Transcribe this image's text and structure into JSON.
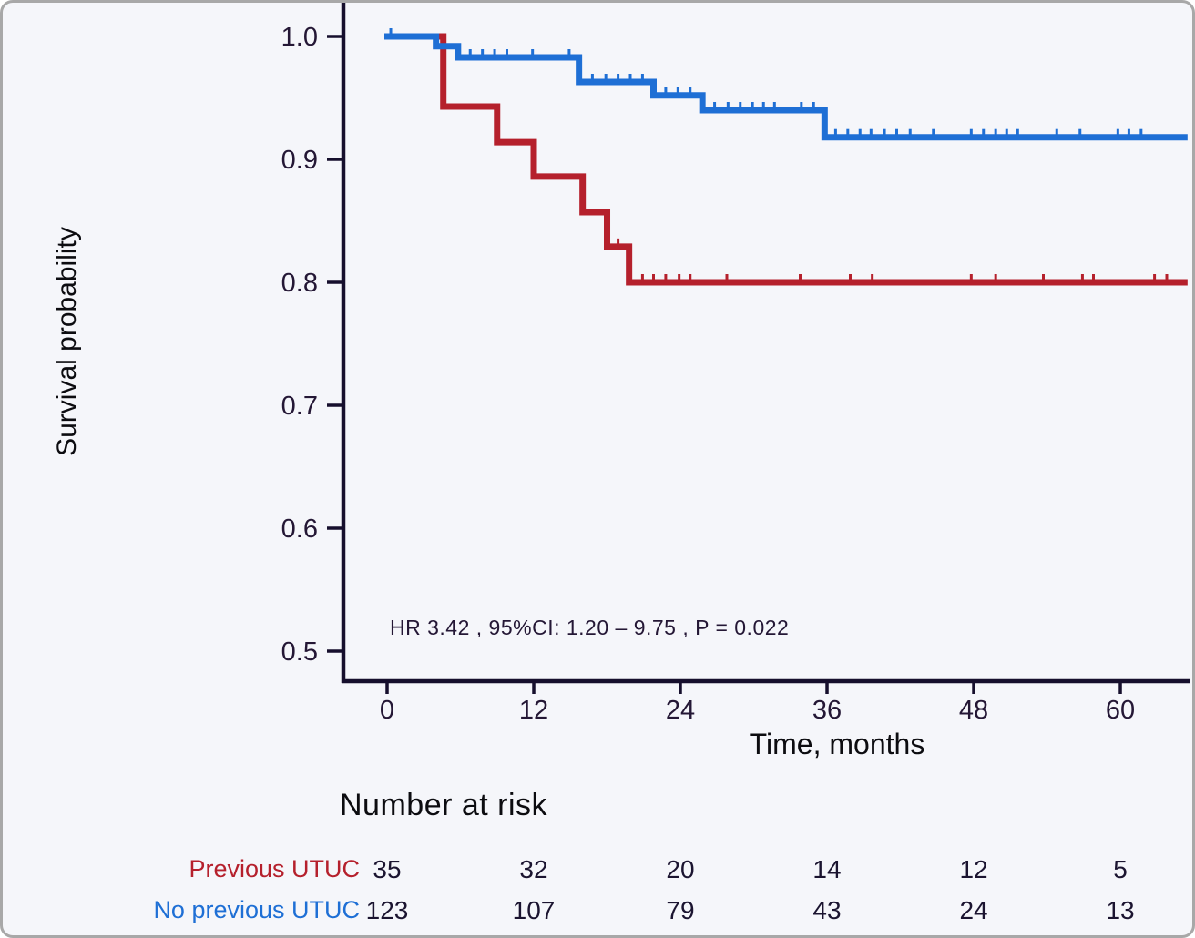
{
  "chart_data": {
    "type": "line",
    "subtype": "kaplan-meier-step",
    "title": "",
    "xlabel": "Time, months",
    "ylabel": "Survival probability",
    "x_ticks": [
      0,
      12,
      24,
      36,
      48,
      60
    ],
    "y_ticks": [
      1.0,
      0.9,
      0.8,
      0.7,
      0.6,
      0.5
    ],
    "y_tick_labels": [
      "1.0",
      "0.9",
      "0.8",
      "0.7",
      "0.6",
      "0.5"
    ],
    "xlim": [
      0,
      66
    ],
    "ylim": [
      0.475,
      1.0
    ],
    "grid": false,
    "legend_position": "none",
    "annotation": "HR  3.42 , 95%CI:  1.20 – 9.75 ,  P = 0.022",
    "colors": {
      "previous_utuc": "#b5202c",
      "no_previous_utuc": "#1e6fd5",
      "axis": "#160f2d",
      "tick_text": "#241735",
      "title_text": "#0c0c10"
    },
    "series": [
      {
        "name": "Previous UTUC",
        "color": "#b5202c",
        "steps": [
          [
            0,
            1.0
          ],
          [
            4.6,
            0.943
          ],
          [
            9.0,
            0.914
          ],
          [
            12.0,
            0.886
          ],
          [
            16.0,
            0.857
          ],
          [
            18.0,
            0.829
          ],
          [
            19.8,
            0.8
          ]
        ],
        "end_time": 65.5,
        "censor_times": [
          18.9,
          20.9,
          21.8,
          22.8,
          23.9,
          24.8,
          27.8,
          33.8,
          37.9,
          39.7,
          47.8,
          49.8,
          53.7,
          56.9,
          57.8,
          62.8,
          63.8
        ]
      },
      {
        "name": "No previous UTUC",
        "color": "#1e6fd5",
        "steps": [
          [
            0,
            1.0
          ],
          [
            4.0,
            0.992
          ],
          [
            5.8,
            0.983
          ],
          [
            15.7,
            0.963
          ],
          [
            21.8,
            0.952
          ],
          [
            25.8,
            0.94
          ],
          [
            35.8,
            0.918
          ]
        ],
        "end_time": 65.5,
        "censor_times": [
          0.3,
          6.8,
          7.8,
          8.8,
          9.8,
          11.9,
          14.9,
          16.8,
          17.9,
          18.9,
          19.9,
          20.9,
          22.8,
          23.8,
          24.8,
          26.8,
          27.9,
          28.9,
          29.9,
          30.8,
          31.7,
          33.9,
          34.9,
          36.7,
          37.7,
          38.7,
          39.6,
          40.7,
          41.7,
          42.8,
          44.7,
          47.8,
          48.8,
          49.8,
          50.7,
          51.6,
          54.8,
          56.7,
          59.8,
          60.7,
          61.7
        ]
      }
    ],
    "risk_table": {
      "title": "Number at risk",
      "times": [
        0,
        12,
        24,
        36,
        48,
        60
      ],
      "rows": [
        {
          "label": "Previous UTUC",
          "color": "#b5202c",
          "values": [
            35,
            32,
            20,
            14,
            12,
            5
          ]
        },
        {
          "label": "No previous UTUC",
          "color": "#1e6fd5",
          "values": [
            123,
            107,
            79,
            43,
            24,
            13
          ]
        }
      ]
    }
  }
}
